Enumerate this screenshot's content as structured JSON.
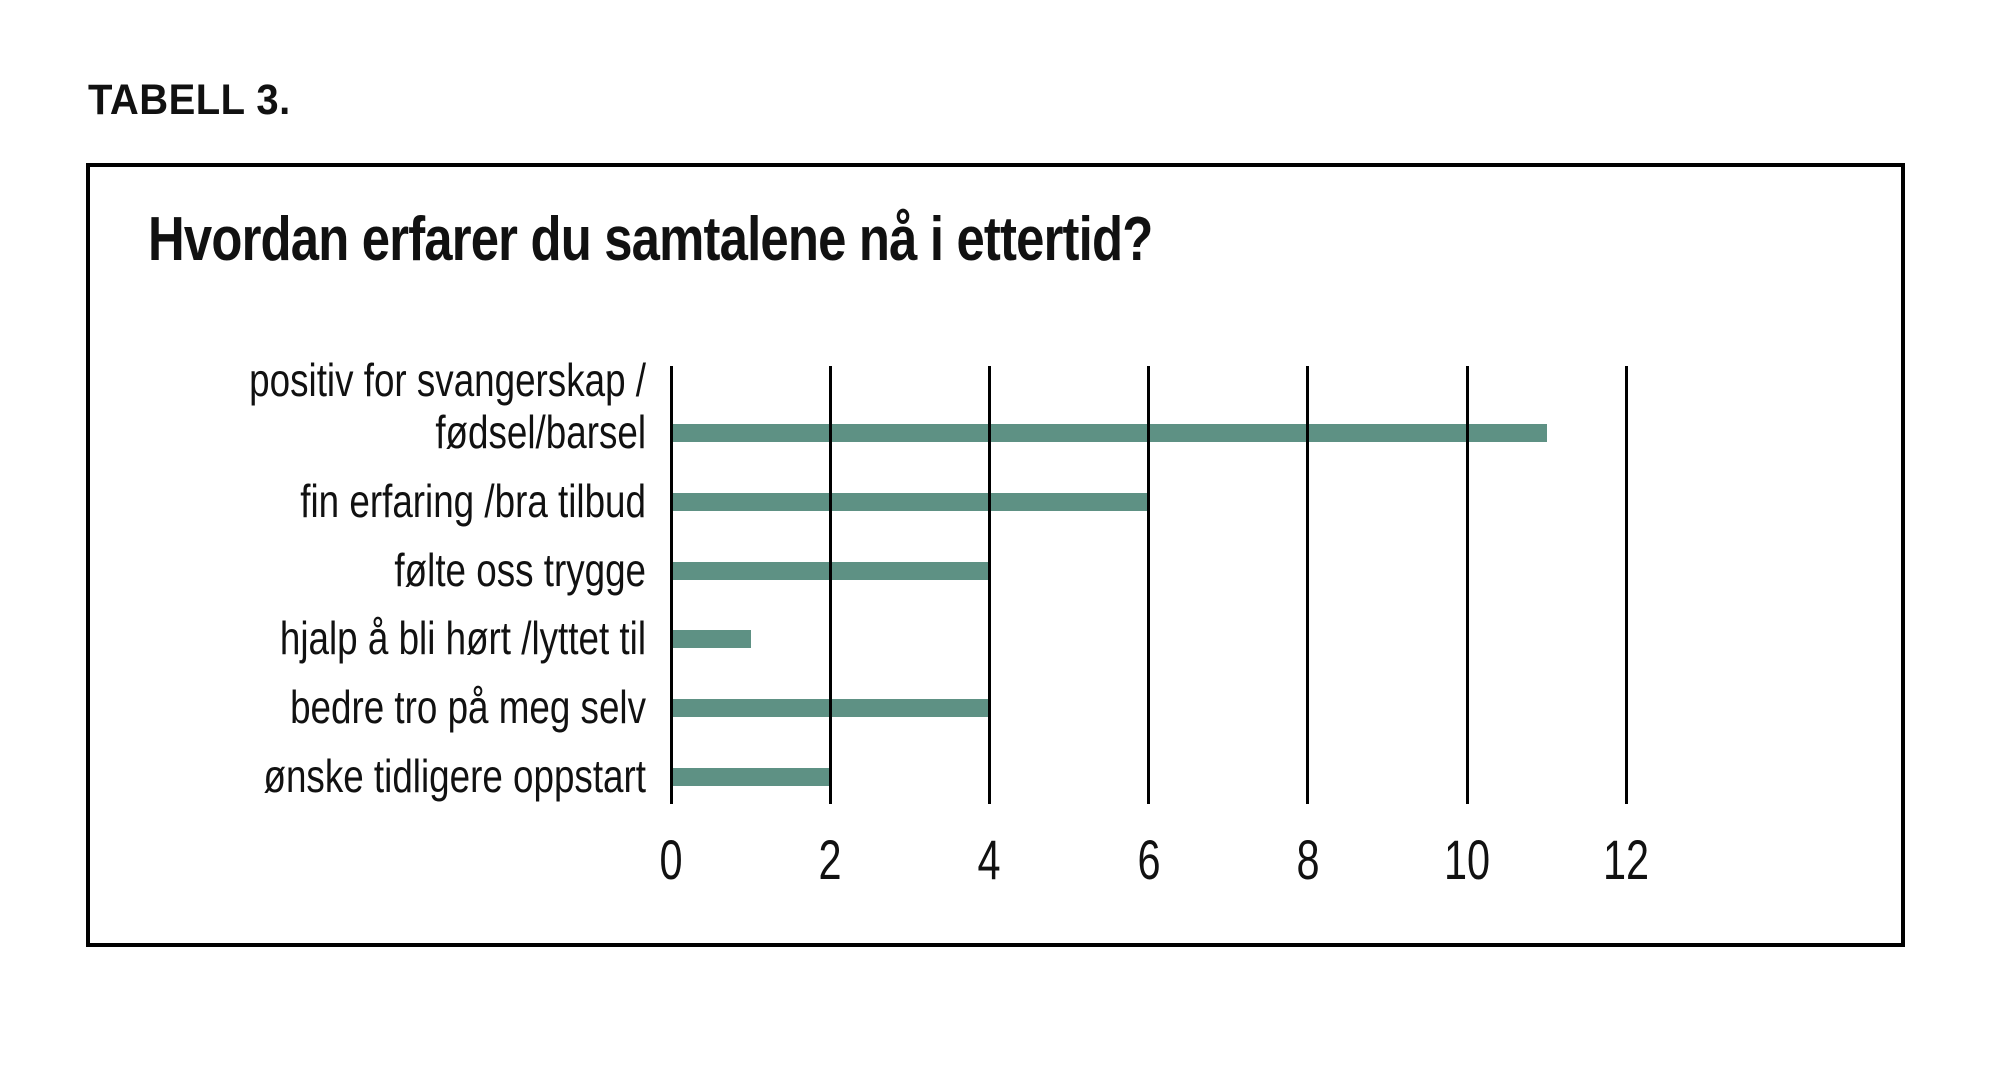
{
  "figure": {
    "caption": "TABELL 3."
  },
  "chart_data": {
    "type": "bar",
    "orientation": "horizontal",
    "title": "Hvordan erfarer du samtalene nå i ettertid?",
    "categories": [
      "positiv for svangerskap /\nfødsel/barsel",
      "fin erfaring /bra tilbud",
      "følte oss trygge",
      "hjalp å bli hørt /lyttet til",
      "bedre tro på meg selv",
      "ønske tidligere oppstart"
    ],
    "values": [
      11,
      6,
      4,
      1,
      4,
      2
    ],
    "xticks": [
      "0",
      "2",
      "4",
      "6",
      "8",
      "10",
      "12"
    ],
    "xtick_values": [
      0,
      2,
      4,
      6,
      8,
      10,
      12
    ],
    "xlim": [
      0,
      13
    ],
    "xlabel": "",
    "ylabel": "",
    "legend": "none",
    "grid": "vertical-lines-only",
    "bar_color": "#5e9184",
    "grid_color": "#000000",
    "text_color": "#111111",
    "frame_border_color": "#000000",
    "background_color": "#ffffff"
  }
}
